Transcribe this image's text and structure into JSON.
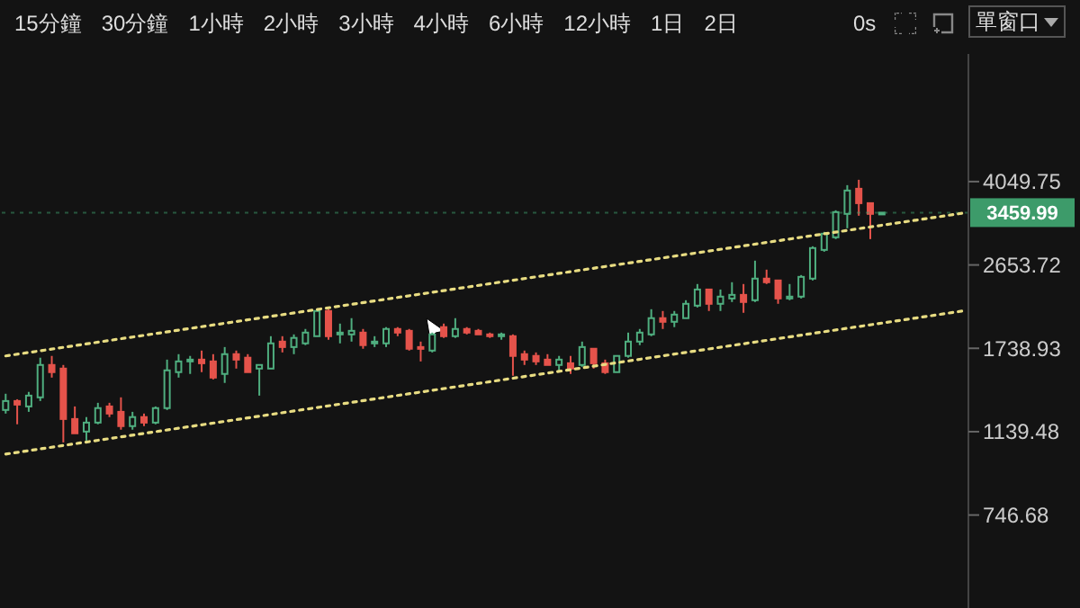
{
  "chart_data": {
    "type": "candlestick",
    "annotations": [
      "15分鐘",
      "30分鐘",
      "1小時",
      "2小時",
      "3小時",
      "4小時",
      "6小時",
      "12小時",
      "1日",
      "2日",
      "0s",
      "單窗口"
    ],
    "categories": [
      null,
      null,
      null,
      null,
      null,
      null,
      null,
      null,
      null,
      null,
      null,
      null,
      null,
      null,
      null,
      null,
      null,
      null,
      null,
      null,
      null,
      null,
      null,
      null,
      null,
      null,
      null,
      null,
      null,
      null,
      null,
      null,
      null,
      null,
      null,
      null,
      null,
      null,
      null,
      null,
      null,
      null,
      null,
      null,
      null,
      null,
      null,
      null,
      null,
      null,
      null,
      null,
      null,
      null,
      null,
      null,
      null,
      null,
      null,
      null,
      null,
      null,
      null,
      null,
      null,
      null,
      null,
      null,
      null,
      null,
      null,
      null,
      null,
      null,
      null,
      null,
      null,
      null,
      null,
      null,
      null,
      null,
      null,
      null
    ],
    "ohlc": [
      [
        1272,
        1381,
        1249,
        1331
      ],
      [
        1331,
        1343,
        1183,
        1307
      ],
      [
        1295,
        1394,
        1260,
        1368
      ],
      [
        1356,
        1658,
        1331,
        1598
      ],
      [
        1598,
        1673,
        1499,
        1541
      ],
      [
        1569,
        1598,
        1079,
        1215
      ],
      [
        1215,
        1295,
        1130,
        1130
      ],
      [
        1140,
        1227,
        1089,
        1193
      ],
      [
        1193,
        1319,
        1183,
        1284
      ],
      [
        1295,
        1319,
        1227,
        1249
      ],
      [
        1260,
        1356,
        1151,
        1172
      ],
      [
        1172,
        1260,
        1151,
        1227
      ],
      [
        1227,
        1249,
        1172,
        1193
      ],
      [
        1193,
        1295,
        1183,
        1284
      ],
      [
        1284,
        1642,
        1272,
        1555
      ],
      [
        1541,
        1688,
        1499,
        1627
      ],
      [
        1627,
        1673,
        1527,
        1642
      ],
      [
        1642,
        1719,
        1541,
        1612
      ],
      [
        1627,
        1688,
        1485,
        1499
      ],
      [
        1527,
        1750,
        1459,
        1688
      ],
      [
        1688,
        1719,
        1569,
        1642
      ],
      [
        1658,
        1688,
        1541,
        1541
      ],
      [
        1569,
        1598,
        1368,
        1598
      ],
      [
        1569,
        1849,
        1569,
        1783
      ],
      [
        1799,
        1849,
        1703,
        1750
      ],
      [
        1750,
        1866,
        1688,
        1833
      ],
      [
        1783,
        1918,
        1767,
        1883
      ],
      [
        1849,
        2120,
        1849,
        2101
      ],
      [
        2101,
        2120,
        1816,
        1849
      ],
      [
        1866,
        1971,
        1783,
        1883
      ],
      [
        1866,
        2026,
        1799,
        1900
      ],
      [
        1883,
        1918,
        1735,
        1767
      ],
      [
        1783,
        1849,
        1750,
        1799
      ],
      [
        1783,
        1936,
        1750,
        1918
      ],
      [
        1918,
        1936,
        1849,
        1883
      ],
      [
        1900,
        1918,
        1719,
        1735
      ],
      [
        1750,
        1799,
        1627,
        1735
      ],
      [
        1719,
        1883,
        1703,
        1866
      ],
      [
        1936,
        1971,
        1833,
        1849
      ],
      [
        1849,
        2026,
        1833,
        1918
      ],
      [
        1918,
        1936,
        1866,
        1883
      ],
      [
        1900,
        1918,
        1866,
        1866
      ],
      [
        1866,
        1883,
        1833,
        1849
      ],
      [
        1849,
        1883,
        1816,
        1866
      ],
      [
        1849,
        1866,
        1513,
        1673
      ],
      [
        1688,
        1719,
        1598,
        1642
      ],
      [
        1673,
        1703,
        1598,
        1627
      ],
      [
        1642,
        1688,
        1598,
        1598
      ],
      [
        1598,
        1673,
        1541,
        1642
      ],
      [
        1612,
        1673,
        1527,
        1569
      ],
      [
        1598,
        1799,
        1583,
        1750
      ],
      [
        1735,
        1735,
        1569,
        1612
      ],
      [
        1612,
        1642,
        1527,
        1541
      ],
      [
        1541,
        1673,
        1541,
        1673
      ],
      [
        1673,
        1883,
        1658,
        1799
      ],
      [
        1799,
        1918,
        1767,
        1883
      ],
      [
        1866,
        2120,
        1849,
        2026
      ],
      [
        2026,
        2101,
        1918,
        1989
      ],
      [
        1989,
        2101,
        1936,
        2063
      ],
      [
        2026,
        2219,
        2026,
        2179
      ],
      [
        2159,
        2409,
        2139,
        2343
      ],
      [
        2343,
        2343,
        2101,
        2179
      ],
      [
        2179,
        2343,
        2101,
        2260
      ],
      [
        2239,
        2431,
        2199,
        2280
      ],
      [
        2280,
        2409,
        2082,
        2199
      ],
      [
        2219,
        2712,
        2199,
        2476
      ],
      [
        2476,
        2591,
        2409,
        2431
      ],
      [
        2453,
        2453,
        2179,
        2239
      ],
      [
        2239,
        2409,
        2219,
        2260
      ],
      [
        2260,
        2521,
        2239,
        2498
      ],
      [
        2476,
        2917,
        2453,
        2891
      ],
      [
        2864,
        3138,
        2838,
        3109
      ],
      [
        3053,
        3501,
        3025,
        3469
      ],
      [
        3438,
        3977,
        3196,
        3870
      ],
      [
        3905,
        4087,
        3406,
        3630
      ],
      [
        3630,
        3630,
        3025,
        3438
      ],
      [
        3460,
        3460,
        3460,
        3460
      ],
      null,
      null,
      null,
      null,
      null,
      null,
      null
    ],
    "colors": [
      "#4fae7f",
      "#e5534b",
      "#4fae7f",
      "#4fae7f",
      "#e5534b",
      "#e5534b",
      "#e5534b",
      "#4fae7f",
      "#4fae7f",
      "#e5534b",
      "#e5534b",
      "#4fae7f",
      "#e5534b",
      "#4fae7f",
      "#4fae7f",
      "#4fae7f",
      "#4fae7f",
      "#e5534b",
      "#e5534b",
      "#4fae7f",
      "#e5534b",
      "#e5534b",
      "#4fae7f",
      "#4fae7f",
      "#e5534b",
      "#4fae7f",
      "#4fae7f",
      "#4fae7f",
      "#e5534b",
      "#4fae7f",
      "#4fae7f",
      "#e5534b",
      "#4fae7f",
      "#4fae7f",
      "#e5534b",
      "#e5534b",
      "#e5534b",
      "#4fae7f",
      "#e5534b",
      "#4fae7f",
      "#e5534b",
      "#e5534b",
      "#e5534b",
      "#4fae7f",
      "#e5534b",
      "#e5534b",
      "#e5534b",
      "#e5534b",
      "#4fae7f",
      "#e5534b",
      "#4fae7f",
      "#e5534b",
      "#e5534b",
      "#4fae7f",
      "#4fae7f",
      "#4fae7f",
      "#4fae7f",
      "#e5534b",
      "#4fae7f",
      "#4fae7f",
      "#4fae7f",
      "#e5534b",
      "#4fae7f",
      "#4fae7f",
      "#e5534b",
      "#4fae7f",
      "#e5534b",
      "#e5534b",
      "#4fae7f",
      "#4fae7f",
      "#4fae7f",
      "#4fae7f",
      "#4fae7f",
      "#4fae7f",
      "#e5534b",
      "#e5534b",
      "#4fae7f",
      null,
      null,
      null,
      null,
      null,
      null,
      null
    ],
    "series": [
      {
        "type": "line",
        "color": "#e8dc82",
        "line_style": "dotted",
        "marker": "none",
        "values": [
          1673,
          null,
          null,
          null,
          null,
          null,
          null,
          null,
          null,
          null,
          null,
          null,
          null,
          null,
          null,
          null,
          null,
          null,
          null,
          null,
          null,
          null,
          null,
          null,
          null,
          null,
          null,
          null,
          null,
          null,
          null,
          null,
          null,
          null,
          null,
          null,
          null,
          null,
          null,
          null,
          null,
          null,
          null,
          null,
          null,
          null,
          null,
          null,
          null,
          null,
          null,
          null,
          null,
          null,
          null,
          null,
          null,
          null,
          null,
          null,
          null,
          null,
          null,
          null,
          null,
          null,
          null,
          null,
          null,
          null,
          null,
          null,
          null,
          null,
          null,
          null,
          null,
          null,
          null,
          null,
          null,
          null,
          null,
          3450
        ]
      },
      {
        "type": "line",
        "color": "#e8dc82",
        "line_style": "dotted",
        "marker": "none",
        "values": [
          1017,
          null,
          null,
          null,
          null,
          null,
          null,
          null,
          null,
          null,
          null,
          null,
          null,
          null,
          null,
          null,
          null,
          null,
          null,
          null,
          null,
          null,
          null,
          null,
          null,
          null,
          null,
          null,
          null,
          null,
          null,
          null,
          null,
          null,
          null,
          null,
          null,
          null,
          null,
          null,
          null,
          null,
          null,
          null,
          null,
          null,
          null,
          null,
          null,
          null,
          null,
          null,
          null,
          null,
          null,
          null,
          null,
          null,
          null,
          null,
          null,
          null,
          null,
          null,
          null,
          null,
          null,
          null,
          null,
          null,
          null,
          null,
          null,
          null,
          null,
          null,
          null,
          null,
          null,
          null,
          null,
          null,
          null,
          2101
        ]
      }
    ],
    "log": true,
    "ylim": [
      466,
      7735
    ],
    "yticks": [
      746.68,
      1139.48,
      1738.93,
      2653.72,
      4049.75
    ],
    "grid": false,
    "ref_lines": [
      {
        "axis": "y",
        "value": 3459.99,
        "label": "3459.99",
        "color": "#3d9b6a",
        "line_style": "dotted"
      }
    ],
    "tick_labels": "y"
  }
}
